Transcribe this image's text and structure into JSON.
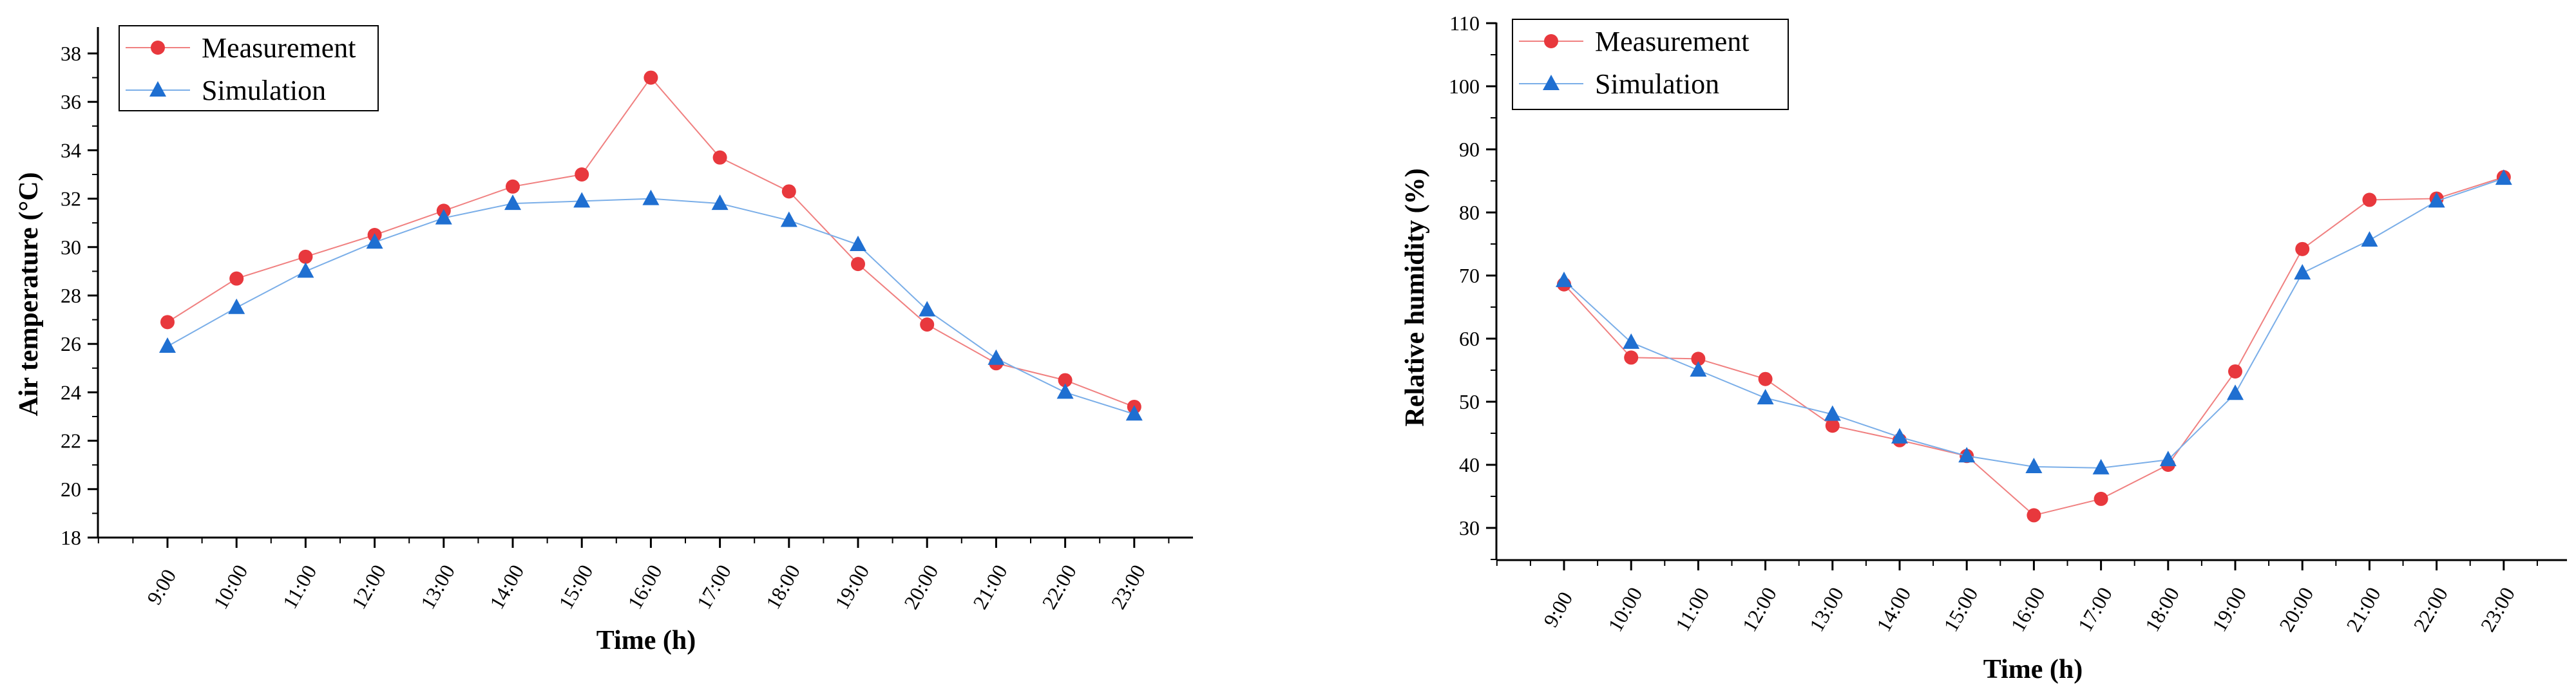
{
  "colors": {
    "measurement": "#e8383d",
    "measurement_line": "#f08080",
    "simulation": "#1f6fd1",
    "simulation_line": "#7aaee8"
  },
  "chart_data": [
    {
      "type": "line",
      "xlabel": "Time (h)",
      "ylabel": "Air temperature (°C)",
      "ylim": [
        18,
        38
      ],
      "yticks": [
        18,
        20,
        22,
        24,
        26,
        28,
        30,
        32,
        34,
        36,
        38
      ],
      "categories": [
        "9:00",
        "10:00",
        "11:00",
        "12:00",
        "13:00",
        "14:00",
        "15:00",
        "16:00",
        "17:00",
        "18:00",
        "19:00",
        "20:00",
        "21:00",
        "22:00",
        "23:00"
      ],
      "legend_position": "top-left",
      "series": [
        {
          "name": "Measurement",
          "marker": "circle",
          "values": [
            26.9,
            28.7,
            29.6,
            30.5,
            31.5,
            32.5,
            33.0,
            37.0,
            33.7,
            32.3,
            29.3,
            26.8,
            25.2,
            24.5,
            23.4
          ]
        },
        {
          "name": "Simulation",
          "marker": "triangle",
          "values": [
            25.9,
            27.5,
            29.0,
            30.2,
            31.2,
            31.8,
            31.9,
            32.0,
            31.8,
            31.1,
            30.1,
            27.4,
            25.4,
            24.0,
            23.1
          ]
        }
      ]
    },
    {
      "type": "line",
      "xlabel": "Time (h)",
      "ylabel": "Relative humidity (%)",
      "ylim": [
        25,
        110
      ],
      "yticks": [
        30,
        40,
        50,
        60,
        70,
        80,
        90,
        100,
        110
      ],
      "categories": [
        "9:00",
        "10:00",
        "11:00",
        "12:00",
        "13:00",
        "14:00",
        "15:00",
        "16:00",
        "17:00",
        "18:00",
        "19:00",
        "20:00",
        "21:00",
        "22:00",
        "23:00"
      ],
      "legend_position": "top-left",
      "series": [
        {
          "name": "Measurement",
          "marker": "circle",
          "values": [
            68.6,
            57.0,
            56.8,
            53.6,
            46.2,
            43.9,
            41.4,
            32.0,
            34.6,
            40.0,
            54.8,
            74.2,
            82.0,
            82.2,
            85.6
          ]
        },
        {
          "name": "Simulation",
          "marker": "triangle",
          "values": [
            69.2,
            59.4,
            55.0,
            50.6,
            48.0,
            44.4,
            41.4,
            39.7,
            39.5,
            40.8,
            51.3,
            70.4,
            75.6,
            81.8,
            85.4
          ]
        }
      ]
    }
  ]
}
